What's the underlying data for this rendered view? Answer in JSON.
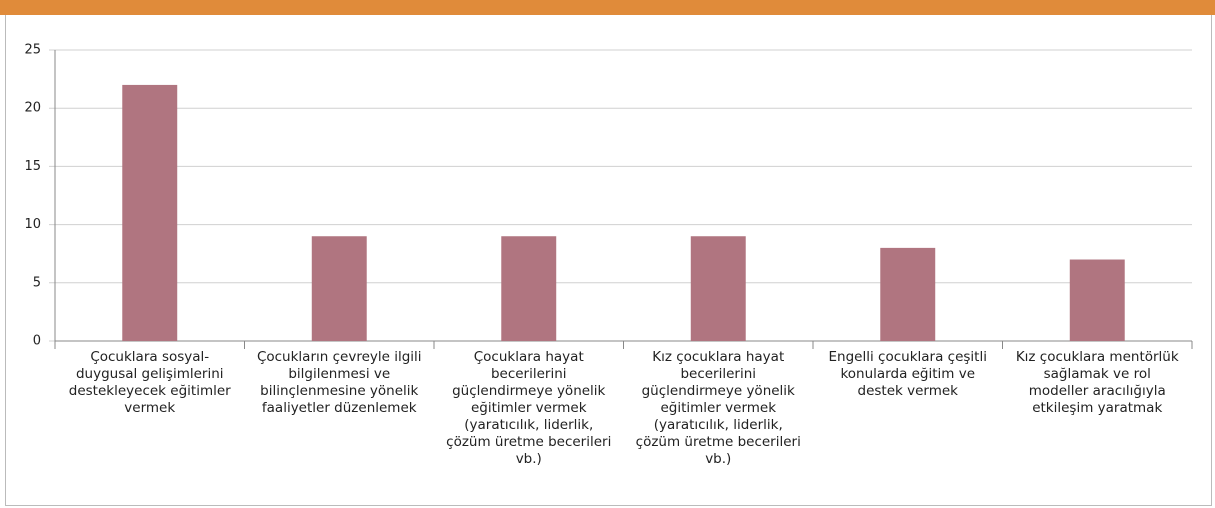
{
  "chart_data": {
    "type": "bar",
    "categories": [
      "Çocuklara sosyal-duygusal gelişimlerini destekleyecek eğitimler vermek",
      "Çocukların çevreyle ilgili bilgilenmesi ve bilinçlenmesine yönelik faaliyetler düzenlemek",
      "Çocuklara hayat becerilerini güçlendirmeye yönelik eğitimler vermek (yaratıcılık, liderlik, çözüm üretme becerileri vb.)",
      "Kız çocuklara hayat becerilerini güçlendirmeye yönelik eğitimler vermek (yaratıcılık, liderlik, çözüm üretme becerileri vb.)",
      "Engelli çocuklara çeşitli konularda eğitim ve destek vermek",
      "Kız çocuklara mentörlük sağlamak ve rol modeller aracılığıyla etkileşim yaratmak"
    ],
    "values": [
      22,
      9,
      9,
      9,
      8,
      7
    ],
    "color": "#b07580",
    "ylim": [
      0,
      25
    ],
    "yticks": [
      0,
      5,
      10,
      15,
      20,
      25
    ],
    "grid": true
  }
}
